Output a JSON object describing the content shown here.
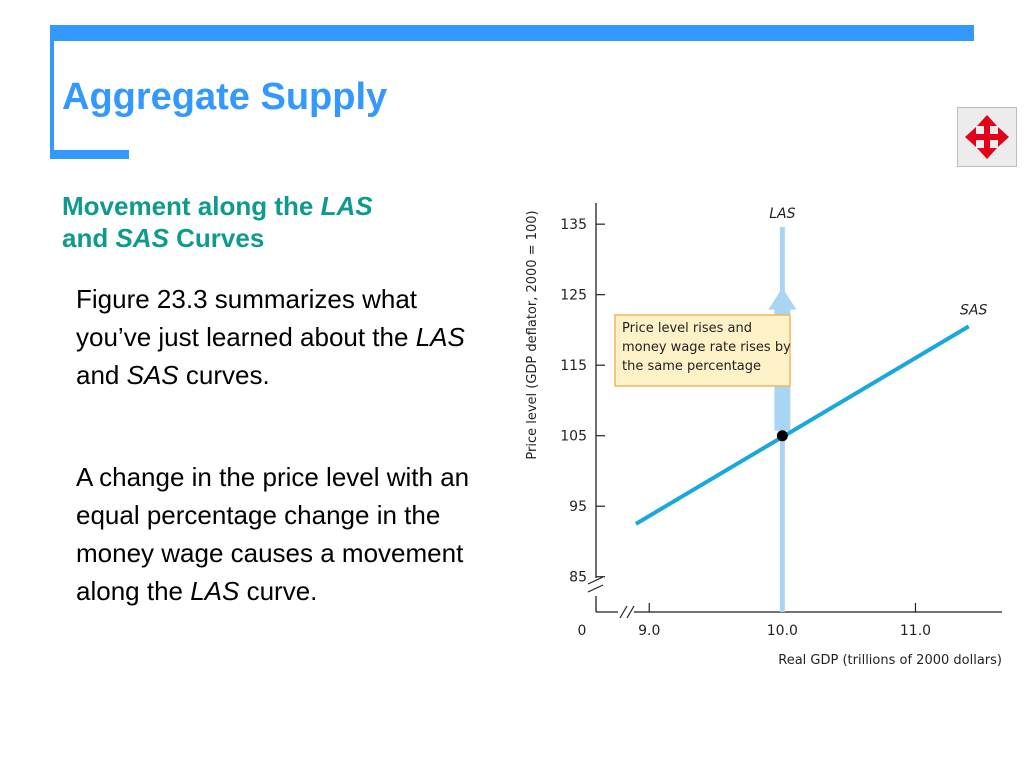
{
  "slide": {
    "title": "Aggregate Supply",
    "subtitle": {
      "part1": "Movement along the ",
      "las": "LAS",
      "part2": "and ",
      "sas": "SAS",
      "part3": " Curves"
    },
    "paragraph1": {
      "text1": "Figure 23.3 summarizes what you’ve just learned about the ",
      "las": "LAS",
      "text2": " and ",
      "sas": "SAS",
      "text3": " curves."
    },
    "paragraph2": {
      "text1": "A change in the price level with an equal percentage change in the money wage causes a movement along the ",
      "las": "LAS",
      "text2": " curve."
    },
    "nav_icon": "four-way-move-arrows-icon"
  },
  "colors": {
    "accent_blue": "#3399ff",
    "subtitle_teal": "#0f9a8e",
    "sas_line": "#1aa7e0",
    "las_line": "#a9d4f2",
    "note_fill": "#fdf1c8",
    "note_border": "#f0b85a",
    "nav_red": "#e3001b"
  },
  "chart_data": {
    "type": "line",
    "xlabel": "Real GDP (trillions of 2000 dollars)",
    "ylabel": "Price level (GDP deflator, 2000 = 100)",
    "x_ticks": [
      "0",
      "9.0",
      "10.0",
      "11.0"
    ],
    "y_ticks": [
      "85",
      "95",
      "105",
      "115",
      "125",
      "135"
    ],
    "xlim": [
      8.6,
      11.65
    ],
    "ylim": [
      80,
      138
    ],
    "axis_breaks": true,
    "series": [
      {
        "name": "LAS",
        "x": [
          10.0,
          10.0
        ],
        "y": [
          80,
          138
        ],
        "color": "#a9d4f2"
      },
      {
        "name": "SAS",
        "x": [
          8.9,
          11.4
        ],
        "y": [
          92.5,
          120.5
        ],
        "color": "#1aa7e0"
      }
    ],
    "points": [
      {
        "x": 10.0,
        "y": 105
      }
    ],
    "arrow": {
      "x": 10.0,
      "from_y": 105.7,
      "to_y": 126
    },
    "annotation": "Price level rises and money wage rate rises by the same percentage"
  }
}
